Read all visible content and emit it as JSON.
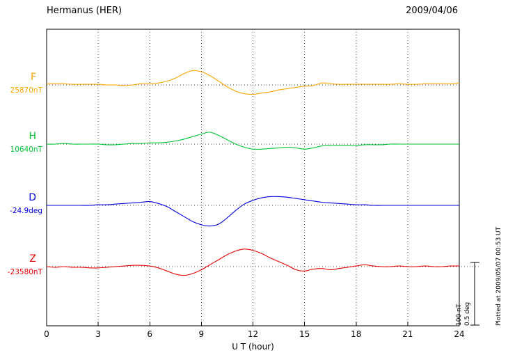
{
  "header": {
    "title": "Hermanus (HER)",
    "date": "2009/04/06"
  },
  "chart_data": {
    "type": "line",
    "title": "Hermanus (HER)",
    "date_label": "2009/04/06",
    "xlabel": "U T (hour)",
    "x_range": [
      0,
      24
    ],
    "x_ticks": [
      0,
      3,
      6,
      9,
      12,
      15,
      18,
      21,
      24
    ],
    "x_step_hours": 0.5,
    "grid": "dotted vertical lines every 3 hours; dotted horizontal baseline per trace",
    "legend_position": "left baseline labels",
    "scale_bar": {
      "nt_label": "100 nT",
      "deg_label": "0.5 deg",
      "nT_per_div": 100,
      "deg_per_div": 0.5
    },
    "plotted_at": "Plotted at 2009/05/07 00:53 UT",
    "series": [
      {
        "name": "F",
        "baseline_value": "25870nT",
        "unit": "nT",
        "color": "#FFA500",
        "offsets": [
          2,
          2,
          2,
          1,
          1,
          1,
          1,
          0,
          0,
          -1,
          0,
          2,
          2,
          3,
          6,
          11,
          18,
          23,
          21,
          15,
          6,
          -3,
          -10,
          -14,
          -15,
          -13,
          -11,
          -8,
          -6,
          -4,
          -2,
          -1,
          3,
          2,
          1,
          1,
          1,
          1,
          1,
          1,
          1,
          2,
          1,
          1,
          2,
          2,
          2,
          2,
          3
        ]
      },
      {
        "name": "H",
        "baseline_value": "10640nT",
        "unit": "nT",
        "color": "#00C432",
        "offsets": [
          0,
          0,
          1,
          0,
          0,
          0,
          0,
          -1,
          -1,
          0,
          1,
          1,
          2,
          2,
          3,
          5,
          8,
          12,
          16,
          19,
          14,
          7,
          0,
          -5,
          -8,
          -8,
          -7,
          -6,
          -5,
          -6,
          -8,
          -6,
          -3,
          -2,
          -2,
          -2,
          -2,
          -1,
          -1,
          -1,
          0,
          0,
          0,
          0,
          0,
          0,
          0,
          0,
          0
        ]
      },
      {
        "name": "D",
        "baseline_value": "-24.9deg",
        "unit": "deg",
        "color": "#0000E0",
        "offsets": [
          0,
          0,
          0,
          0,
          0,
          0,
          0.005,
          0.005,
          0.01,
          0.015,
          0.02,
          0.025,
          0.03,
          0.015,
          -0.01,
          -0.05,
          -0.09,
          -0.13,
          -0.155,
          -0.165,
          -0.15,
          -0.1,
          -0.04,
          0.01,
          0.04,
          0.06,
          0.07,
          0.07,
          0.065,
          0.055,
          0.045,
          0.035,
          0.025,
          0.02,
          0.015,
          0.01,
          0.005,
          0.005,
          0,
          0,
          0,
          0,
          0,
          0,
          0,
          0,
          0,
          0,
          0
        ]
      },
      {
        "name": "Z",
        "baseline_value": "-23580nT",
        "unit": "nT",
        "color": "#E60000",
        "offsets": [
          0,
          -1,
          0,
          -1,
          -1,
          -2,
          -2,
          -1,
          0,
          1,
          2,
          2,
          1,
          -2,
          -7,
          -12,
          -14,
          -11,
          -5,
          3,
          11,
          19,
          25,
          28,
          26,
          21,
          14,
          8,
          2,
          -5,
          -7,
          -4,
          -3,
          -5,
          -3,
          -1,
          1,
          3,
          1,
          0,
          0,
          1,
          0,
          0,
          1,
          0,
          0,
          1,
          1
        ]
      }
    ]
  }
}
